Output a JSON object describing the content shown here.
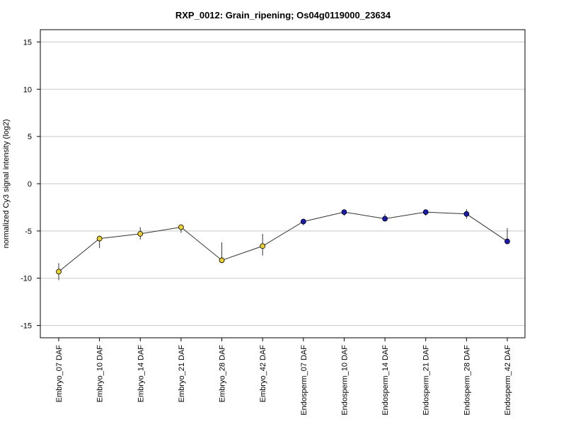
{
  "chart_data": {
    "type": "line",
    "title": "RXP_0012: Grain_ripening; Os04g0119000_23634",
    "xlabel": "",
    "ylabel": "normalized Cy3 signal intensity (log2)",
    "ylim": [
      -16.3,
      16.3
    ],
    "yticks": [
      15,
      10,
      5,
      0,
      -5,
      -10,
      -15
    ],
    "ytick_labels": [
      "15",
      "10",
      "5",
      "0",
      "-5",
      "-10",
      "-15"
    ],
    "grid": true,
    "categories": [
      "Embryo_07 DAF",
      "Embryo_10 DAF",
      "Embryo_14 DAF",
      "Embryo_21 DAF",
      "Embryo_28 DAF",
      "Embryo_42 DAF",
      "Endosperm_07 DAF",
      "Endosperm_10 DAF",
      "Endosperm_14 DAF",
      "Endosperm_21 DAF",
      "Endosperm_28 DAF",
      "Endosperm_42 DAF"
    ],
    "values": [
      -9.3,
      -5.8,
      -5.3,
      -4.6,
      -8.1,
      -6.6,
      -4.0,
      -3.0,
      -3.7,
      -3.0,
      -3.2,
      -6.1
    ],
    "error_low": [
      -10.2,
      -6.8,
      -5.9,
      -5.2,
      -8.1,
      -7.6,
      -4.4,
      -3.4,
      -4.0,
      -3.4,
      -3.7,
      -6.1
    ],
    "error_high": [
      -8.4,
      -5.6,
      -4.6,
      -4.3,
      -6.2,
      -5.3,
      -3.7,
      -2.9,
      -3.2,
      -2.8,
      -2.7,
      -4.7
    ],
    "point_colors": [
      "#e8d033",
      "#e8d033",
      "#e8d033",
      "#e8d033",
      "#e8d033",
      "#e8d033",
      "#1a1ab0",
      "#1a1ab0",
      "#1a1ab0",
      "#1a1ab0",
      "#1a1ab0",
      "#1a1ab0"
    ],
    "line_color": "#333333",
    "grid_color": "#c8c8c8"
  }
}
